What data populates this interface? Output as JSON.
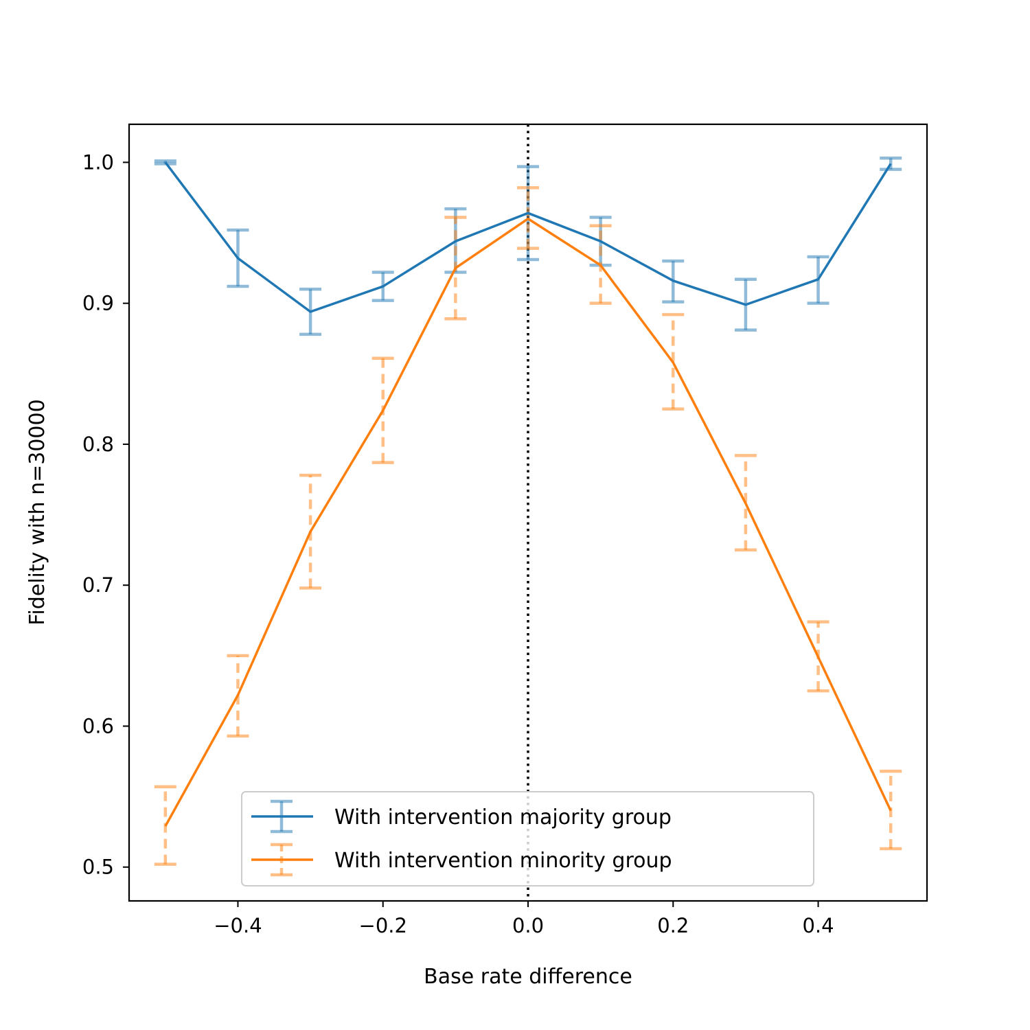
{
  "chart_data": {
    "type": "line",
    "xlabel": "Base rate difference",
    "ylabel": "Fidelity with n=30000",
    "xlim": [
      -0.55,
      0.55
    ],
    "ylim": [
      0.476,
      1.027
    ],
    "x_ticks": [
      -0.4,
      -0.2,
      0.0,
      0.2,
      0.4
    ],
    "x_tick_labels": [
      "−0.4",
      "−0.2",
      "0.0",
      "0.2",
      "0.4"
    ],
    "y_ticks": [
      0.5,
      0.6,
      0.7,
      0.8,
      0.9,
      1.0
    ],
    "y_tick_labels": [
      "0.5",
      "0.6",
      "0.7",
      "0.8",
      "0.9",
      "1.0"
    ],
    "grid": false,
    "legend_position": "lower-center",
    "reference_line": {
      "x": 0.0,
      "style": "dotted",
      "color": "#000000"
    },
    "x": [
      -0.5,
      -0.4,
      -0.3,
      -0.2,
      -0.1,
      0.0,
      0.1,
      0.2,
      0.3,
      0.4,
      0.5
    ],
    "series": [
      {
        "name": "With intervention majority group",
        "color": "#1f77b4",
        "errorbar_style": "solid",
        "values": [
          1.0,
          0.932,
          0.894,
          0.912,
          0.944,
          0.964,
          0.944,
          0.916,
          0.899,
          0.917,
          0.999
        ],
        "lower": [
          0.999,
          0.912,
          0.878,
          0.902,
          0.922,
          0.931,
          0.927,
          0.901,
          0.881,
          0.9,
          0.995
        ],
        "upper": [
          1.001,
          0.952,
          0.91,
          0.922,
          0.967,
          0.997,
          0.961,
          0.93,
          0.917,
          0.933,
          1.003
        ]
      },
      {
        "name": "With intervention minority group",
        "color": "#ff7f0e",
        "errorbar_style": "dashed",
        "values": [
          0.529,
          0.622,
          0.738,
          0.824,
          0.925,
          0.96,
          0.927,
          0.858,
          0.758,
          0.649,
          0.54
        ],
        "lower": [
          0.502,
          0.593,
          0.698,
          0.787,
          0.889,
          0.939,
          0.9,
          0.825,
          0.725,
          0.625,
          0.513
        ],
        "upper": [
          0.557,
          0.65,
          0.778,
          0.861,
          0.961,
          0.982,
          0.955,
          0.892,
          0.792,
          0.674,
          0.568
        ]
      }
    ]
  }
}
